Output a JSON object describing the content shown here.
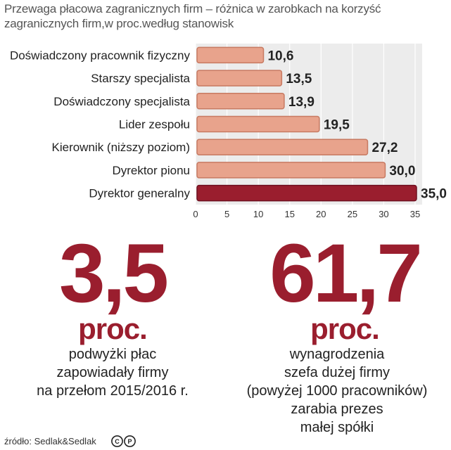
{
  "title": "Przewaga płacowa zagranicznych firm – różnica w zarobkach na korzyść zagranicznych firm,w proc.według stanowisk",
  "chart_data": {
    "type": "bar",
    "orientation": "horizontal",
    "categories": [
      "Doświadczony pracownik fizyczny",
      "Starszy specjalista",
      "Doświadczony specjalista",
      "Lider zespołu",
      "Kierownik (niższy poziom)",
      "Dyrektor pionu",
      "Dyrektor generalny"
    ],
    "values": [
      10.6,
      13.5,
      13.9,
      19.5,
      27.2,
      30.0,
      35.0
    ],
    "value_labels": [
      "10,6",
      "13,5",
      "13,9",
      "19,5",
      "27,2",
      "30,0",
      "35,0"
    ],
    "xlim": [
      0,
      35
    ],
    "xticks": [
      0,
      5,
      10,
      15,
      20,
      25,
      30,
      35
    ],
    "bar_color": "#e8a38c",
    "highlight_color": "#9a1e2e",
    "highlight_index": 6,
    "grid": true
  },
  "stats": [
    {
      "number": "3,5",
      "unit": "proc.",
      "lines": [
        "podwyżki płac",
        "zapowiadały firmy",
        "na przełom 2015/2016 r."
      ]
    },
    {
      "number": "61,7",
      "unit": "proc.",
      "lines": [
        "wynagrodzenia",
        "szefa dużej firmy",
        "(powyżej 1000 pracowników)",
        "zarabia prezes",
        "małej spółki"
      ]
    }
  ],
  "source": "źródło: Sedlak&Sedlak",
  "accent_color": "#9a1e2e",
  "icons": [
    "cc-icon",
    "p-icon"
  ]
}
